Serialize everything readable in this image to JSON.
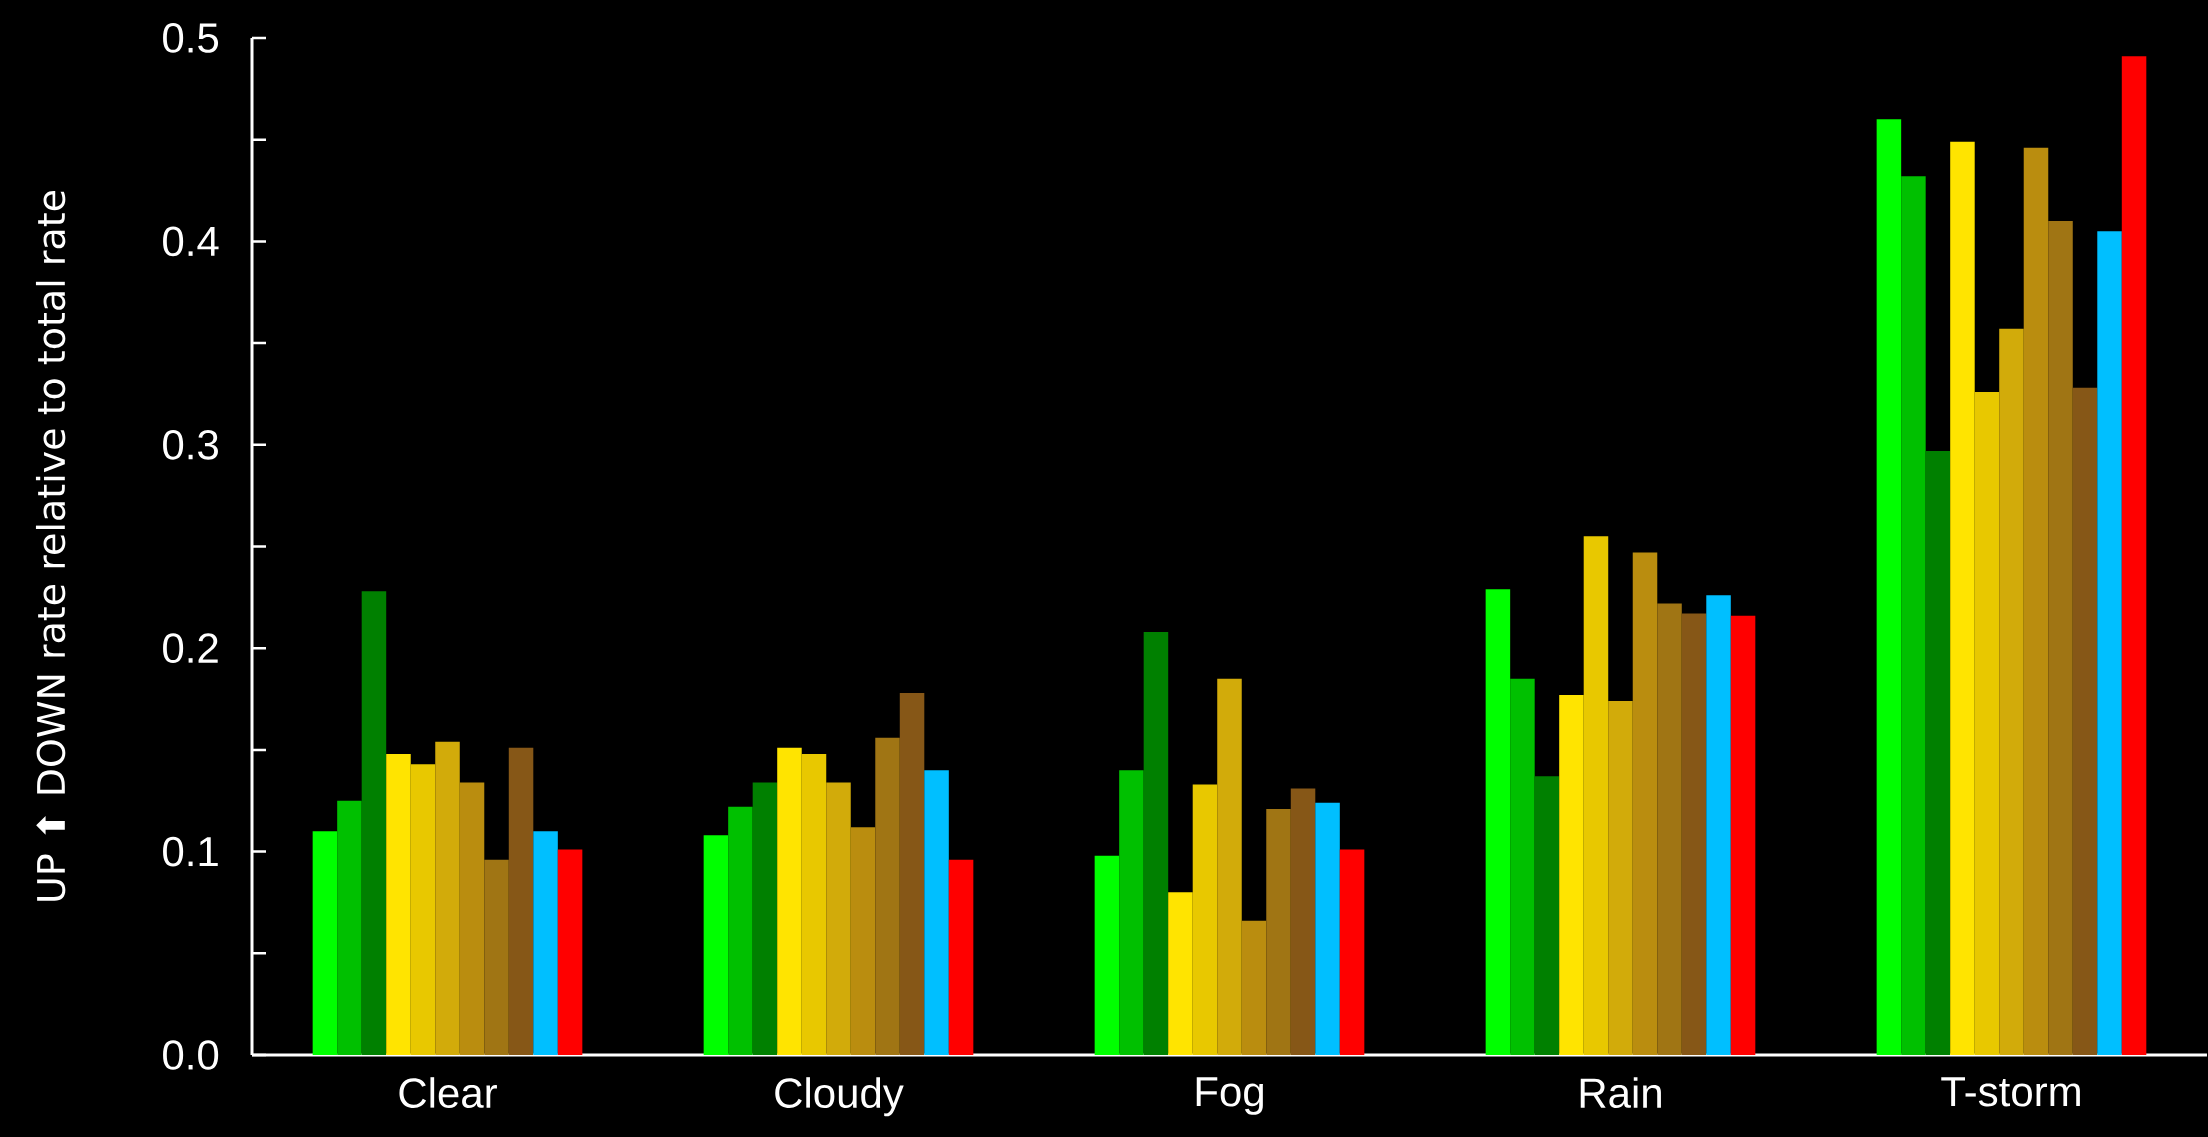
{
  "chart_data": {
    "type": "bar",
    "ylabel": "UP ⬆ DOWN rate relative to total rate",
    "categories": [
      "Clear",
      "Cloudy",
      "Fog",
      "Rain",
      "T-storm"
    ],
    "series": [
      {
        "color": "#00ff00",
        "values": [
          0.11,
          0.108,
          0.098,
          0.229,
          0.46
        ]
      },
      {
        "color": "#00c000",
        "values": [
          0.125,
          0.122,
          0.14,
          0.185,
          0.432
        ]
      },
      {
        "color": "#008000",
        "values": [
          0.228,
          0.134,
          0.208,
          0.137,
          0.297
        ]
      },
      {
        "color": "#ffe400",
        "values": [
          0.148,
          0.151,
          0.08,
          0.177,
          0.449
        ]
      },
      {
        "color": "#e8c800",
        "values": [
          0.143,
          0.148,
          0.133,
          0.255,
          0.326
        ]
      },
      {
        "color": "#d2ab0a",
        "values": [
          0.154,
          0.134,
          0.185,
          0.174,
          0.357
        ]
      },
      {
        "color": "#ba8d0f",
        "values": [
          0.134,
          0.112,
          0.066,
          0.247,
          0.446
        ]
      },
      {
        "color": "#a07514",
        "values": [
          0.096,
          0.156,
          0.121,
          0.222,
          0.41
        ]
      },
      {
        "color": "#865717",
        "values": [
          0.151,
          0.178,
          0.131,
          0.217,
          0.328
        ]
      },
      {
        "color": "#00bfff",
        "values": [
          0.11,
          0.14,
          0.124,
          0.226,
          0.405
        ]
      },
      {
        "color": "#ff0000",
        "values": [
          0.101,
          0.096,
          0.101,
          0.216,
          0.491
        ]
      }
    ],
    "ylim": [
      0,
      0.5
    ],
    "yticks": [
      {
        "value": 0,
        "label": "0.0"
      },
      {
        "value": 0.05,
        "label": null
      },
      {
        "value": 0.1,
        "label": "0.1"
      },
      {
        "value": 0.15,
        "label": null
      },
      {
        "value": 0.2,
        "label": "0.2"
      },
      {
        "value": 0.25,
        "label": null
      },
      {
        "value": 0.3,
        "label": "0.3"
      },
      {
        "value": 0.35,
        "label": null
      },
      {
        "value": 0.4,
        "label": "0.4"
      },
      {
        "value": 0.45,
        "label": null
      },
      {
        "value": 0.5,
        "label": "0.5"
      }
    ],
    "grid": false
  }
}
